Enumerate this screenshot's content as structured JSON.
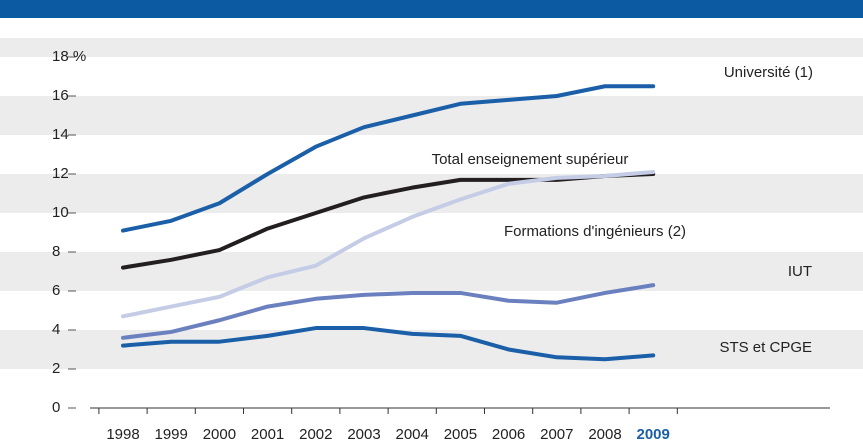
{
  "chart_data": {
    "type": "line",
    "categories": [
      "1998",
      "1999",
      "2000",
      "2001",
      "2002",
      "2003",
      "2004",
      "2005",
      "2006",
      "2007",
      "2008",
      "2009"
    ],
    "series": [
      {
        "name": "Université (1)",
        "color": "#1a5fa8",
        "values": [
          9.1,
          9.6,
          10.5,
          12.0,
          13.4,
          14.4,
          15.0,
          15.6,
          15.8,
          16.0,
          16.5,
          16.5
        ]
      },
      {
        "name": "Total enseignement supérieur",
        "color": "#231f20",
        "values": [
          7.2,
          7.6,
          8.1,
          9.2,
          10.0,
          10.8,
          11.3,
          11.7,
          11.7,
          11.7,
          11.9,
          12.0
        ]
      },
      {
        "name": "Formations d'ingénieurs (2)",
        "color": "#c5cde6",
        "values": [
          4.7,
          5.2,
          5.7,
          6.7,
          7.3,
          8.7,
          9.8,
          10.7,
          11.5,
          11.8,
          11.9,
          12.1
        ]
      },
      {
        "name": "IUT",
        "color": "#6b80bf",
        "values": [
          3.6,
          3.9,
          4.5,
          5.2,
          5.6,
          5.8,
          5.9,
          5.9,
          5.5,
          5.4,
          5.9,
          6.3
        ]
      },
      {
        "name": "STS et CPGE",
        "color": "#1a5fa8",
        "values": [
          3.2,
          3.4,
          3.4,
          3.7,
          4.1,
          4.1,
          3.8,
          3.7,
          3.0,
          2.6,
          2.5,
          2.7
        ]
      }
    ],
    "ylim": [
      0,
      18
    ],
    "yticks": [
      0,
      2,
      4,
      6,
      8,
      10,
      12,
      14,
      16,
      {
        "value": 18,
        "label": "18 %"
      }
    ],
    "grid": true
  }
}
